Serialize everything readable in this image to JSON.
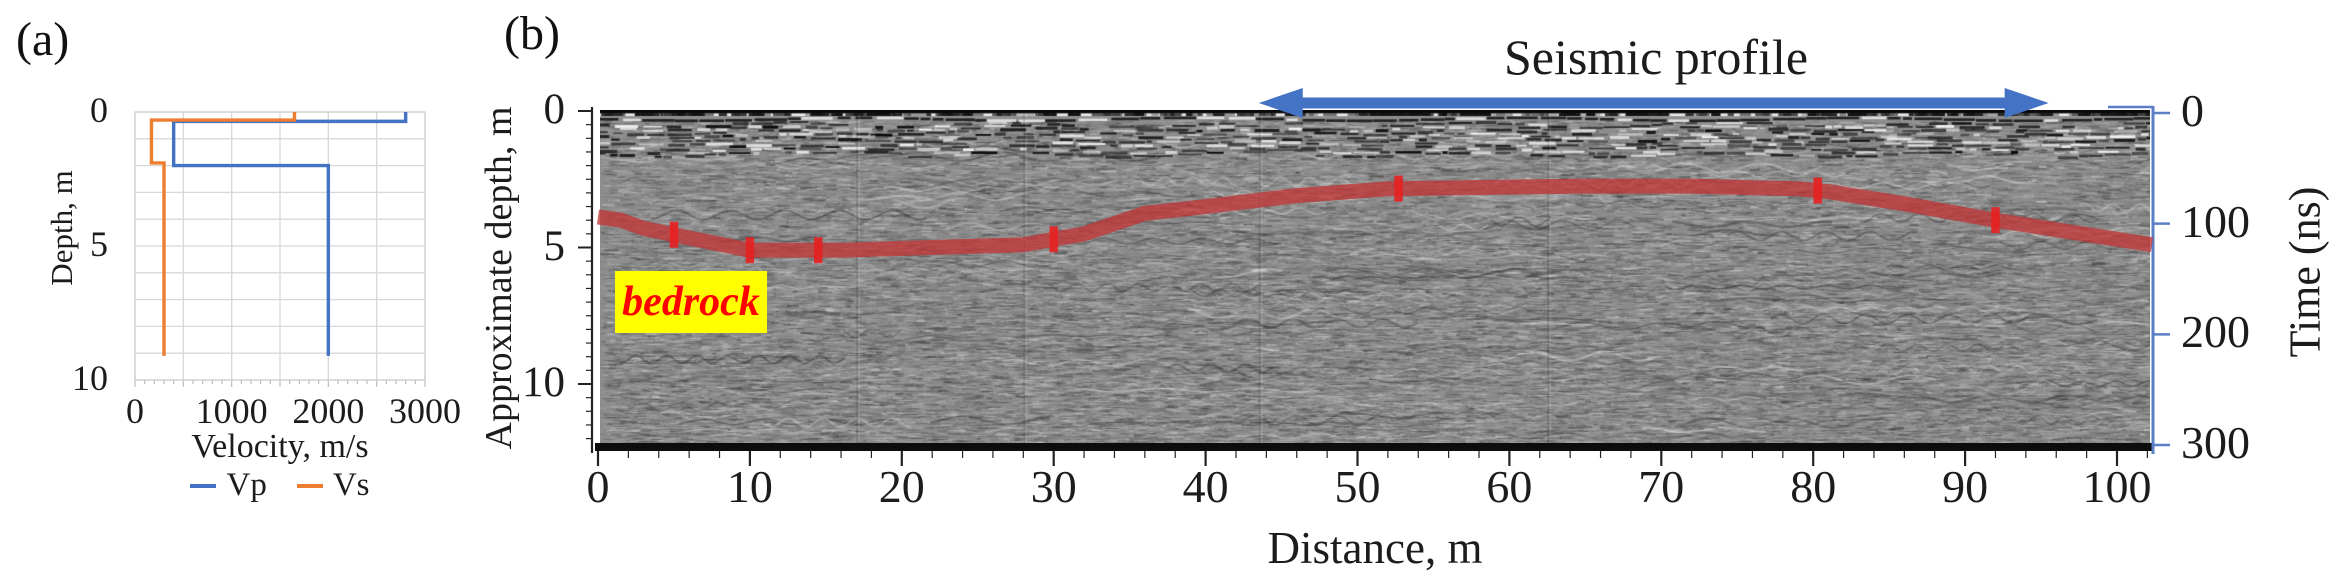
{
  "figure": {
    "panel_a_label": "(a)",
    "panel_b_label": "(b)"
  },
  "colors": {
    "vp_blue": "#4472C4",
    "vs_orange": "#ED7D31",
    "arrow_blue": "#4472C4",
    "time_axis_blue": "#5B7FC7",
    "interface_red": "#C23636",
    "interface_marker_red": "#E82020",
    "annotation_bg_yellow": "#FFFF00",
    "annotation_text_red": "#FF0000",
    "grid_gray": "#D8D8D8",
    "radargram_base_gray": "#8D8D8D"
  },
  "chart_data": [
    {
      "panel": "a",
      "type": "line",
      "title": "",
      "xlabel": "Velocity, m/s",
      "ylabel": "Depth, m",
      "xlim": [
        0,
        3000
      ],
      "depth_lim": [
        0,
        10
      ],
      "xticks": [
        0,
        1000,
        2000,
        3000
      ],
      "depth_ticks": [
        0,
        5,
        10
      ],
      "x_grid_step": 500,
      "depth_grid_step": 1,
      "grid": true,
      "legend_position": "bottom",
      "series": [
        {
          "name": "Vp",
          "color_key": "vp_blue",
          "velocity_depth": [
            [
              2800,
              0
            ],
            [
              2800,
              0.35
            ],
            [
              400,
              0.35
            ],
            [
              400,
              2.0
            ],
            [
              2000,
              2.0
            ],
            [
              2000,
              9.1
            ]
          ]
        },
        {
          "name": "Vs",
          "color_key": "vs_orange",
          "velocity_depth": [
            [
              1650,
              0
            ],
            [
              1650,
              0.3
            ],
            [
              170,
              0.3
            ],
            [
              170,
              1.9
            ],
            [
              300,
              1.9
            ],
            [
              300,
              9.1
            ]
          ]
        }
      ]
    },
    {
      "panel": "b",
      "type": "radargram",
      "title": "Seismic profile",
      "xlabel": "Distance, m",
      "ylabel_left": "Approximate depth, m",
      "ylabel_right": "Time (ns)",
      "xlim": [
        0,
        102.3
      ],
      "xticks": [
        0,
        10,
        20,
        30,
        40,
        50,
        60,
        70,
        80,
        90,
        100
      ],
      "x_minor_step": 2,
      "depth_ticks": [
        0,
        5,
        10
      ],
      "depth_axis_max": 12.4,
      "depth_minor_step": 0.5,
      "time_ticks": [
        0,
        100,
        200,
        300
      ],
      "annotation": {
        "text": "bedrock"
      },
      "profile_arrow": {
        "label": "Seismic profile",
        "from_distance_m": 43.5,
        "to_distance_m": 95.5
      },
      "bedrock_interface_distance_depth_m": [
        [
          0,
          3.88
        ],
        [
          1.5,
          4.0
        ],
        [
          3,
          4.3
        ],
        [
          6,
          4.65
        ],
        [
          10,
          5.1
        ],
        [
          16,
          5.1
        ],
        [
          22,
          5.0
        ],
        [
          28,
          4.9
        ],
        [
          32,
          4.5
        ],
        [
          36,
          3.75
        ],
        [
          40,
          3.5
        ],
        [
          46,
          3.1
        ],
        [
          52,
          2.85
        ],
        [
          58,
          2.8
        ],
        [
          65,
          2.75
        ],
        [
          72,
          2.75
        ],
        [
          79,
          2.85
        ],
        [
          81,
          2.95
        ],
        [
          86,
          3.4
        ],
        [
          92,
          4.0
        ],
        [
          102.3,
          4.9
        ]
      ],
      "interface_marker_distances_m": [
        5,
        10,
        14.5,
        30,
        52.7,
        80.3,
        92
      ]
    }
  ]
}
